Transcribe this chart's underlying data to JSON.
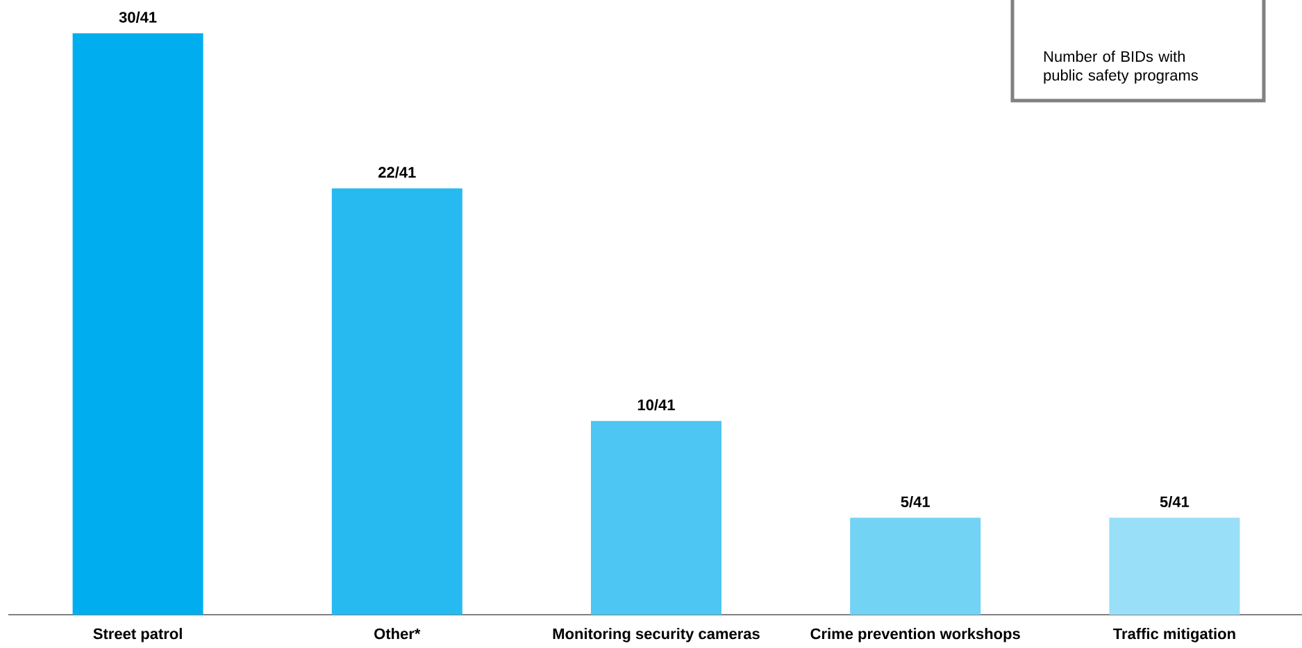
{
  "chart_data": {
    "type": "bar",
    "categories": [
      "Street patrol",
      "Other*",
      "Monitoring security cameras",
      "Crime prevention workshops",
      "Traffic mitigation"
    ],
    "values": [
      30,
      22,
      10,
      5,
      5
    ],
    "colors": [
      "#00aeef",
      "#27baf1",
      "#4dc6f3",
      "#72d3f5",
      "#99dff8"
    ],
    "value_labels": [
      "30/41",
      "22/41",
      "10/41",
      "5/41",
      "5/41"
    ],
    "annotations": [
      "Number of BIDs with public safety programs"
    ]
  }
}
